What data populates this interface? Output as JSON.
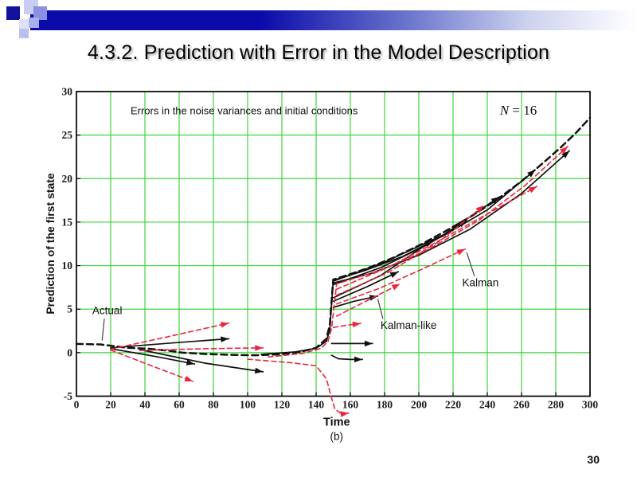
{
  "slide": {
    "title": "4.3.2. Prediction with Error in the Model Description",
    "page_number": "30"
  },
  "theme": {
    "header_bar_blue": "#0b0baa",
    "square_dark_blue": "#12129e",
    "square_medium_blue": "#8a90e2",
    "square_light_blue": "#c9cdf1",
    "grid_green": "#3fd43f",
    "axis_black": "#000000",
    "actual_black": "#111111",
    "kalman_like_black": "#111111",
    "kalman_red": "#e8273d"
  },
  "chart_data": {
    "type": "line",
    "title": "Errors in the noise variances and initial conditions",
    "corner_label": "N = 16",
    "xlabel": "Time",
    "xlabel_sub": "(b)",
    "ylabel": "Prediction of the first state",
    "xlim": [
      0,
      300
    ],
    "ylim": [
      -5,
      30
    ],
    "x_ticks": [
      0,
      20,
      40,
      60,
      80,
      100,
      120,
      140,
      160,
      180,
      200,
      220,
      240,
      260,
      280,
      300
    ],
    "y_ticks": [
      -5,
      0,
      5,
      10,
      15,
      20,
      25,
      30
    ],
    "grid": true,
    "legend_position": "none",
    "annotations": [
      {
        "text": "Actual",
        "x": 18,
        "y": 4.8,
        "pointer": [
          [
            16.3,
            3.9
          ],
          [
            15,
            1.4
          ]
        ]
      },
      {
        "text": "Kalman-like",
        "x": 194,
        "y": 3.1,
        "pointer": [
          [
            179,
            3.9
          ],
          [
            176,
            6.2
          ]
        ]
      },
      {
        "text": "Kalman",
        "x": 236,
        "y": 8.0,
        "pointer": [
          [
            232.5,
            8.8
          ],
          [
            228,
            11.5
          ]
        ]
      }
    ],
    "series": [
      {
        "name": "actual",
        "group": "actual",
        "style": "dashed",
        "color": "#111111",
        "width": 2.5,
        "dash": "8 5",
        "arrow": false,
        "points": [
          [
            0,
            1.0
          ],
          [
            14,
            0.95
          ],
          [
            20,
            0.8
          ],
          [
            30,
            0.55
          ],
          [
            42,
            0.45
          ],
          [
            55,
            0.2
          ],
          [
            62,
            0.0
          ],
          [
            75,
            -0.15
          ],
          [
            90,
            -0.25
          ],
          [
            105,
            -0.3
          ],
          [
            118,
            -0.2
          ],
          [
            130,
            0.05
          ],
          [
            140,
            0.55
          ],
          [
            146,
            1.6
          ],
          [
            148,
            3.2
          ],
          [
            150,
            8.4
          ],
          [
            158,
            8.9
          ],
          [
            170,
            9.7
          ],
          [
            185,
            10.9
          ],
          [
            200,
            12.3
          ],
          [
            215,
            13.9
          ],
          [
            230,
            15.6
          ],
          [
            245,
            17.5
          ],
          [
            260,
            19.7
          ],
          [
            272,
            21.7
          ],
          [
            283,
            23.6
          ],
          [
            292,
            25.3
          ],
          [
            300,
            27.0
          ]
        ]
      },
      {
        "name": "kalman-like-main",
        "group": "kalman-like",
        "style": "solid",
        "color": "#111111",
        "width": 1.7,
        "arrow": true,
        "points": [
          [
            108,
            -0.2
          ],
          [
            128,
            0.1
          ],
          [
            140,
            0.5
          ],
          [
            146,
            1.3
          ],
          [
            148,
            2.6
          ],
          [
            150,
            8.3
          ],
          [
            168,
            9.4
          ],
          [
            190,
            11.0
          ],
          [
            215,
            13.5
          ],
          [
            240,
            16.4
          ],
          [
            268,
            21.0
          ]
        ]
      },
      {
        "name": "kalman-like-2",
        "group": "kalman-like",
        "style": "solid",
        "color": "#111111",
        "width": 1.7,
        "arrow": true,
        "points": [
          [
            150,
            8.0
          ],
          [
            172,
            9.1
          ],
          [
            200,
            11.2
          ],
          [
            230,
            14.2
          ],
          [
            260,
            18.3
          ],
          [
            288,
            23.2
          ]
        ]
      },
      {
        "name": "kalman-like-3",
        "group": "kalman-like",
        "style": "solid",
        "color": "#111111",
        "width": 1.7,
        "arrow": true,
        "points": [
          [
            150,
            8.2
          ],
          [
            180,
            10.4
          ],
          [
            215,
            13.6
          ],
          [
            247,
            17.9
          ]
        ]
      },
      {
        "name": "kalman-like-4",
        "group": "kalman-like",
        "style": "solid",
        "color": "#111111",
        "width": 1.7,
        "arrow": true,
        "points": [
          [
            150,
            7.8
          ],
          [
            178,
            9.8
          ],
          [
            205,
            12.4
          ],
          [
            228,
            15.2
          ]
        ]
      },
      {
        "name": "kalman-like-5",
        "group": "kalman-like",
        "style": "solid",
        "color": "#111111",
        "width": 1.7,
        "arrow": true,
        "points": [
          [
            150,
            6.3
          ],
          [
            178,
            8.9
          ],
          [
            208,
            12.9
          ]
        ]
      },
      {
        "name": "kalman-like-6",
        "group": "kalman-like",
        "style": "solid",
        "color": "#111111",
        "width": 1.7,
        "arrow": true,
        "points": [
          [
            150,
            5.9
          ],
          [
            170,
            7.6
          ],
          [
            188,
            9.3
          ]
        ]
      },
      {
        "name": "kalman-like-7",
        "group": "kalman-like",
        "style": "solid",
        "color": "#111111",
        "width": 1.7,
        "arrow": true,
        "points": [
          [
            150,
            5.2
          ],
          [
            162,
            5.9
          ],
          [
            176,
            6.5
          ]
        ]
      },
      {
        "name": "kalman-like-fan1",
        "group": "kalman-like",
        "style": "solid",
        "color": "#111111",
        "width": 1.7,
        "arrow": true,
        "points": [
          [
            20,
            0.55
          ],
          [
            55,
            1.1
          ],
          [
            89,
            1.6
          ]
        ]
      },
      {
        "name": "kalman-like-fan2",
        "group": "kalman-like",
        "style": "solid",
        "color": "#111111",
        "width": 1.7,
        "arrow": true,
        "points": [
          [
            20,
            0.45
          ],
          [
            45,
            -0.4
          ],
          [
            69,
            -1.3
          ]
        ]
      },
      {
        "name": "kalman-like-fan3",
        "group": "kalman-like",
        "style": "solid",
        "color": "#111111",
        "width": 1.7,
        "arrow": true,
        "points": [
          [
            37,
            0.35
          ],
          [
            75,
            -1.2
          ],
          [
            109,
            -2.2
          ]
        ]
      },
      {
        "name": "kalman-like-h1",
        "group": "kalman-like",
        "style": "solid",
        "color": "#111111",
        "width": 1.7,
        "arrow": true,
        "points": [
          [
            149,
            1.05
          ],
          [
            173,
            1.05
          ]
        ]
      },
      {
        "name": "kalman-like-h2",
        "group": "kalman-like",
        "style": "solid",
        "color": "#111111",
        "width": 1.7,
        "arrow": true,
        "points": [
          [
            149,
            -0.3
          ],
          [
            153,
            -0.7
          ],
          [
            160,
            -0.78
          ],
          [
            167,
            -0.78
          ]
        ]
      },
      {
        "name": "kalman-main",
        "group": "kalman",
        "style": "dashed",
        "color": "#e8273d",
        "width": 1.6,
        "dash": "6 4",
        "arrow": true,
        "points": [
          [
            112,
            -0.5
          ],
          [
            132,
            -0.1
          ],
          [
            143,
            0.5
          ],
          [
            147,
            1.3
          ],
          [
            149,
            2.8
          ],
          [
            152,
            7.9
          ],
          [
            178,
            9.5
          ],
          [
            205,
            11.8
          ],
          [
            235,
            15.2
          ],
          [
            262,
            19.2
          ],
          [
            287,
            23.7
          ]
        ]
      },
      {
        "name": "kalman-2",
        "group": "kalman",
        "style": "dashed",
        "color": "#e8273d",
        "width": 1.6,
        "dash": "6 4",
        "arrow": true,
        "points": [
          [
            152,
            7.3
          ],
          [
            182,
            9.8
          ],
          [
            215,
            13.2
          ],
          [
            246,
            16.6
          ],
          [
            269,
            19.1
          ]
        ]
      },
      {
        "name": "kalman-3",
        "group": "kalman",
        "style": "dashed",
        "color": "#e8273d",
        "width": 1.6,
        "dash": "6 4",
        "arrow": true,
        "points": [
          [
            152,
            6.6
          ],
          [
            182,
            9.2
          ],
          [
            212,
            12.8
          ],
          [
            238,
            16.9
          ]
        ]
      },
      {
        "name": "kalman-4",
        "group": "kalman",
        "style": "dashed",
        "color": "#e8273d",
        "width": 1.6,
        "dash": "6 4",
        "arrow": true,
        "points": [
          [
            152,
            5.6
          ],
          [
            177,
            7.4
          ],
          [
            202,
            9.6
          ],
          [
            227,
            11.9
          ]
        ]
      },
      {
        "name": "kalman-5",
        "group": "kalman",
        "style": "dashed",
        "color": "#e8273d",
        "width": 1.6,
        "dash": "6 4",
        "arrow": true,
        "points": [
          [
            152,
            4.2
          ],
          [
            170,
            6.0
          ],
          [
            189,
            7.9
          ]
        ]
      },
      {
        "name": "kalman-6",
        "group": "kalman",
        "style": "dashed",
        "color": "#e8273d",
        "width": 1.6,
        "dash": "6 4",
        "arrow": true,
        "points": [
          [
            150,
            2.9
          ],
          [
            158,
            3.15
          ],
          [
            166,
            3.35
          ]
        ]
      },
      {
        "name": "kalman-fan1",
        "group": "kalman",
        "style": "dashed",
        "color": "#e8273d",
        "width": 1.6,
        "dash": "6 4",
        "arrow": true,
        "points": [
          [
            20,
            0.4
          ],
          [
            55,
            1.9
          ],
          [
            89,
            3.4
          ]
        ]
      },
      {
        "name": "kalman-fan2",
        "group": "kalman",
        "style": "dashed",
        "color": "#e8273d",
        "width": 1.6,
        "dash": "6 4",
        "arrow": true,
        "points": [
          [
            20,
            0.3
          ],
          [
            45,
            -1.6
          ],
          [
            68,
            -3.3
          ]
        ]
      },
      {
        "name": "kalman-fan3",
        "group": "kalman",
        "style": "dashed",
        "color": "#e8273d",
        "width": 1.6,
        "dash": "6 4",
        "arrow": true,
        "points": [
          [
            37,
            0.25
          ],
          [
            75,
            0.45
          ],
          [
            109,
            0.55
          ]
        ]
      },
      {
        "name": "kalman-plunge",
        "group": "kalman",
        "style": "dashed",
        "color": "#e8273d",
        "width": 1.6,
        "dash": "6 4",
        "arrow": true,
        "points": [
          [
            100,
            -0.75
          ],
          [
            125,
            -1.15
          ],
          [
            140,
            -1.5
          ],
          [
            146,
            -3.0
          ],
          [
            149,
            -5.2
          ],
          [
            151,
            -6.5
          ],
          [
            155,
            -7.05
          ],
          [
            159,
            -6.95
          ]
        ]
      }
    ]
  }
}
